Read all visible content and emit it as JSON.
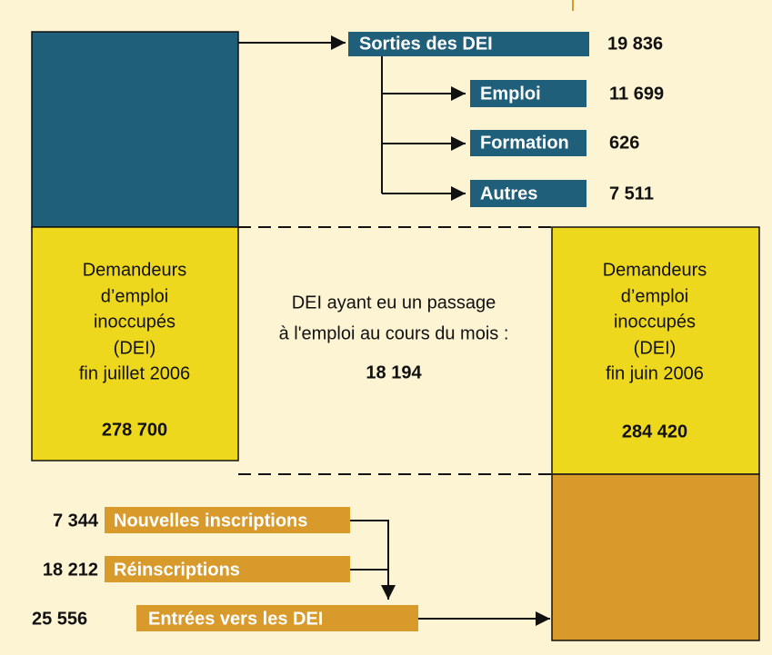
{
  "outflows": {
    "title": "Sorties des DEI",
    "value": "19 836",
    "items": [
      {
        "label": "Emploi",
        "value": "11 699"
      },
      {
        "label": "Formation",
        "value": "626"
      },
      {
        "label": "Autres",
        "value": "7 511"
      }
    ]
  },
  "left_box": {
    "lines": [
      "Demandeurs",
      "d’emploi",
      "inoccupés",
      "(DEI)",
      "fin juillet 2006"
    ],
    "value": "278 700"
  },
  "right_box": {
    "lines": [
      "Demandeurs",
      "d’emploi",
      "inoccupés",
      "(DEI)",
      "fin juin 2006"
    ],
    "value": "284 420"
  },
  "middle": {
    "lines": [
      "DEI ayant eu un passage",
      "à l'emploi au cours du mois :"
    ],
    "value": "18 194"
  },
  "inflows": {
    "items": [
      {
        "label": "Nouvelles inscriptions",
        "value": "7 344"
      },
      {
        "label": "Réinscriptions",
        "value": "18 212"
      }
    ],
    "total": {
      "label": "Entrées vers les DEI",
      "value": "25 556"
    }
  }
}
